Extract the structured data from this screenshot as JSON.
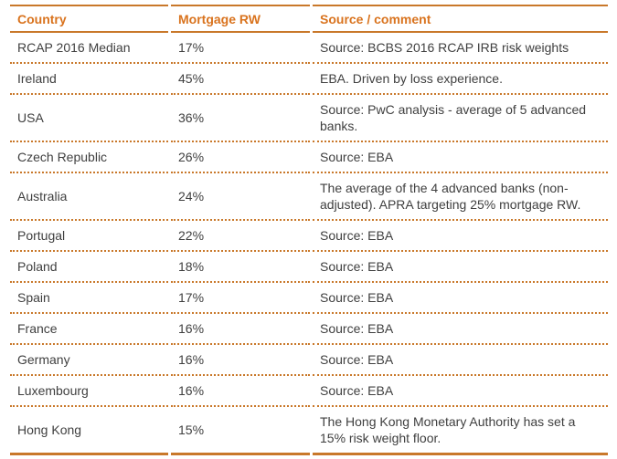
{
  "table": {
    "columns": [
      {
        "key": "country",
        "label": "Country"
      },
      {
        "key": "rw",
        "label": "Mortgage RW"
      },
      {
        "key": "source",
        "label": "Source / comment"
      }
    ],
    "rows": [
      {
        "country": "RCAP 2016 Median",
        "rw": "17%",
        "source": "Source: BCBS 2016 RCAP IRB risk weights"
      },
      {
        "country": "Ireland",
        "rw": "45%",
        "source": "EBA. Driven by loss experience."
      },
      {
        "country": "USA",
        "rw": "36%",
        "source": "Source: PwC analysis - average of 5 advanced banks."
      },
      {
        "country": "Czech Republic",
        "rw": "26%",
        "source": "Source: EBA"
      },
      {
        "country": "Australia",
        "rw": "24%",
        "source": "The average of the 4 advanced banks (non-adjusted). APRA targeting 25% mortgage RW."
      },
      {
        "country": "Portugal",
        "rw": "22%",
        "source": "Source: EBA"
      },
      {
        "country": "Poland",
        "rw": "18%",
        "source": "Source: EBA"
      },
      {
        "country": "Spain",
        "rw": "17%",
        "source": "Source: EBA"
      },
      {
        "country": "France",
        "rw": "16%",
        "source": "Source: EBA"
      },
      {
        "country": "Germany",
        "rw": "16%",
        "source": "Source: EBA"
      },
      {
        "country": "Luxembourg",
        "rw": "16%",
        "source": "Source: EBA"
      },
      {
        "country": "Hong Kong",
        "rw": "15%",
        "source": "The Hong Kong Monetary Authority has set a 15% risk weight floor."
      }
    ],
    "colors": {
      "accent_text": "#D9731E",
      "border": "#C9782A",
      "body_text": "#3F3F3F",
      "background": "#FFFFFF"
    }
  }
}
